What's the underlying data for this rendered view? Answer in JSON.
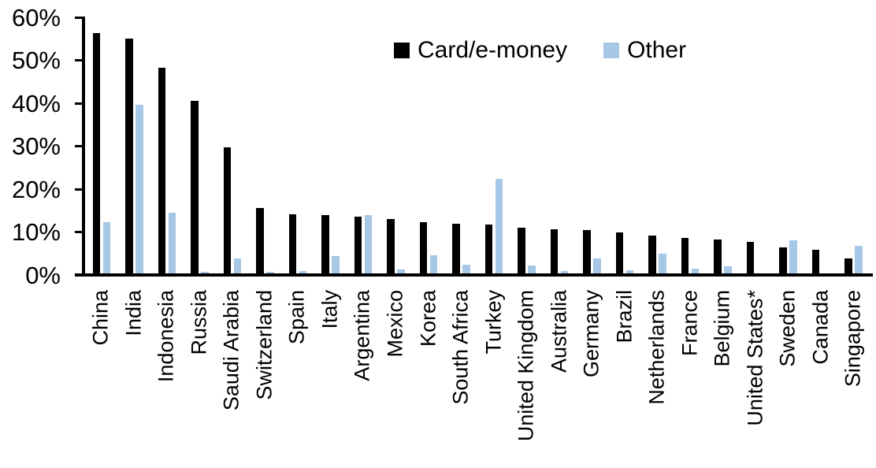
{
  "chart_data": {
    "type": "bar",
    "title": "",
    "xlabel": "",
    "ylabel": "",
    "ylim": [
      0,
      60
    ],
    "y_tick_labels": [
      "0%",
      "10%",
      "20%",
      "30%",
      "40%",
      "50%",
      "60%"
    ],
    "grid": false,
    "legend_position": "top-center",
    "categories": [
      "China",
      "India",
      "Indonesia",
      "Russia",
      "Saudi Arabia",
      "Switzerland",
      "Spain",
      "Italy",
      "Argentina",
      "Mexico",
      "Korea",
      "South Africa",
      "Turkey",
      "United Kingdom",
      "Australia",
      "Germany",
      "Brazil",
      "Netherlands",
      "France",
      "Belgium",
      "United States*",
      "Sweden",
      "Canada",
      "Singapore"
    ],
    "series": [
      {
        "name": "Card/e-money",
        "color": "#000000",
        "values": [
          56.3,
          55.0,
          48.2,
          40.5,
          29.7,
          15.6,
          14.2,
          14.0,
          13.5,
          13.0,
          12.3,
          12.0,
          11.7,
          11.0,
          10.7,
          10.5,
          9.9,
          9.2,
          8.7,
          8.2,
          7.8,
          6.5,
          5.9,
          3.9
        ]
      },
      {
        "name": "Other",
        "color": "#A6C7E6",
        "values": [
          12.3,
          39.6,
          14.5,
          0.8,
          3.8,
          0.7,
          0.9,
          4.4,
          13.9,
          1.3,
          4.5,
          2.4,
          22.4,
          2.2,
          1.0,
          3.8,
          1.1,
          4.9,
          1.5,
          2.0,
          0.3,
          8.0,
          0.0,
          6.8
        ]
      }
    ]
  }
}
